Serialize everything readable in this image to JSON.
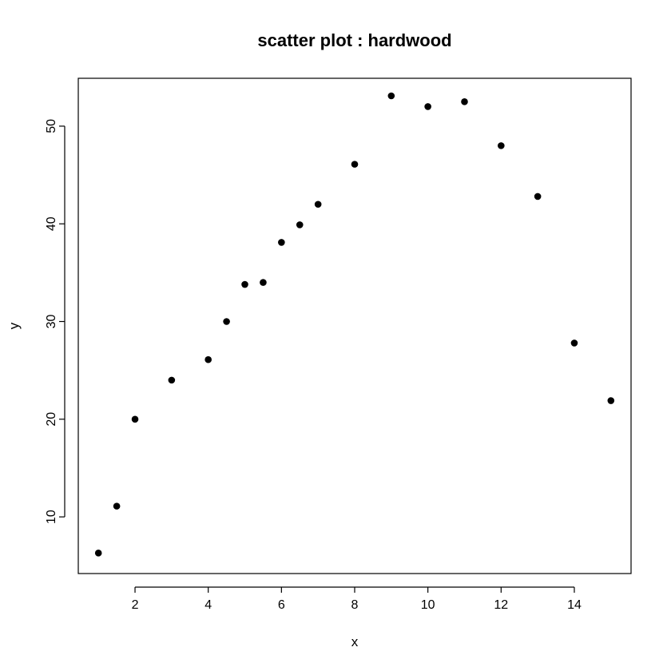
{
  "chart_data": {
    "type": "scatter",
    "title": "scatter plot : hardwood",
    "xlabel": "x",
    "ylabel": "y",
    "xlim": [
      0.45,
      15.55
    ],
    "ylim": [
      4.2,
      54.9
    ],
    "xticks": [
      2,
      4,
      6,
      8,
      10,
      12,
      14
    ],
    "yticks": [
      10,
      20,
      30,
      40,
      50
    ],
    "grid": false,
    "marker_color": "#000000",
    "series": [
      {
        "x": [
          1,
          1.5,
          2,
          3,
          4,
          4.5,
          5,
          5.5,
          6,
          6.5,
          7,
          8,
          9,
          10,
          11,
          12,
          13,
          14,
          15
        ],
        "y": [
          6.3,
          11.1,
          20.0,
          24.0,
          26.1,
          30.0,
          33.8,
          34.0,
          38.1,
          39.9,
          42.0,
          46.1,
          53.1,
          52.0,
          52.5,
          48.0,
          42.8,
          27.8,
          21.9
        ]
      }
    ]
  }
}
